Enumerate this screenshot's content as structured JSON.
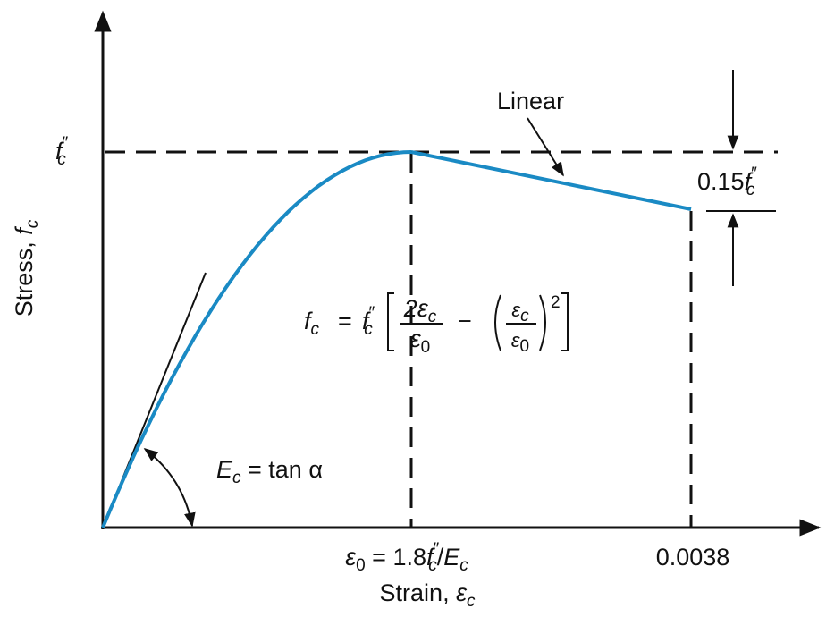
{
  "axes": {
    "y_label": {
      "text": "Stress, ",
      "symbol": "f",
      "subscript": "c"
    },
    "x_label": {
      "text": "Strain, ",
      "symbol": "ε",
      "subscript": "c"
    }
  },
  "peak_stress": {
    "symbol": "f",
    "prime": "″",
    "subscript": "c"
  },
  "peak_strain": {
    "symbol": "ε",
    "subscript": "0",
    "equals": " = 1.8",
    "f": "f",
    "prime": "″",
    "f_subscript": "c",
    "slash": "/",
    "E": "E",
    "E_subscript": "c"
  },
  "ultimate_strain": "0.0038",
  "linear_label": "Linear",
  "drop_label": {
    "text": "0.15",
    "f": "f",
    "prime": "″",
    "subscript": "c"
  },
  "modulus_label": {
    "E": "E",
    "subscript": "c",
    "rest": " = tan α"
  },
  "formula": {
    "lhs": "f",
    "lhs_sub": "c",
    "eq": "=",
    "f": "f",
    "prime": "″",
    "f_sub": "c",
    "num1": "2ε",
    "num1_sub": "c",
    "den1": "ε",
    "den1_sub": "0",
    "minus": "−",
    "num2": "ε",
    "num2_sub": "c",
    "den2": "ε",
    "den2_sub": "0",
    "power": "2"
  }
}
